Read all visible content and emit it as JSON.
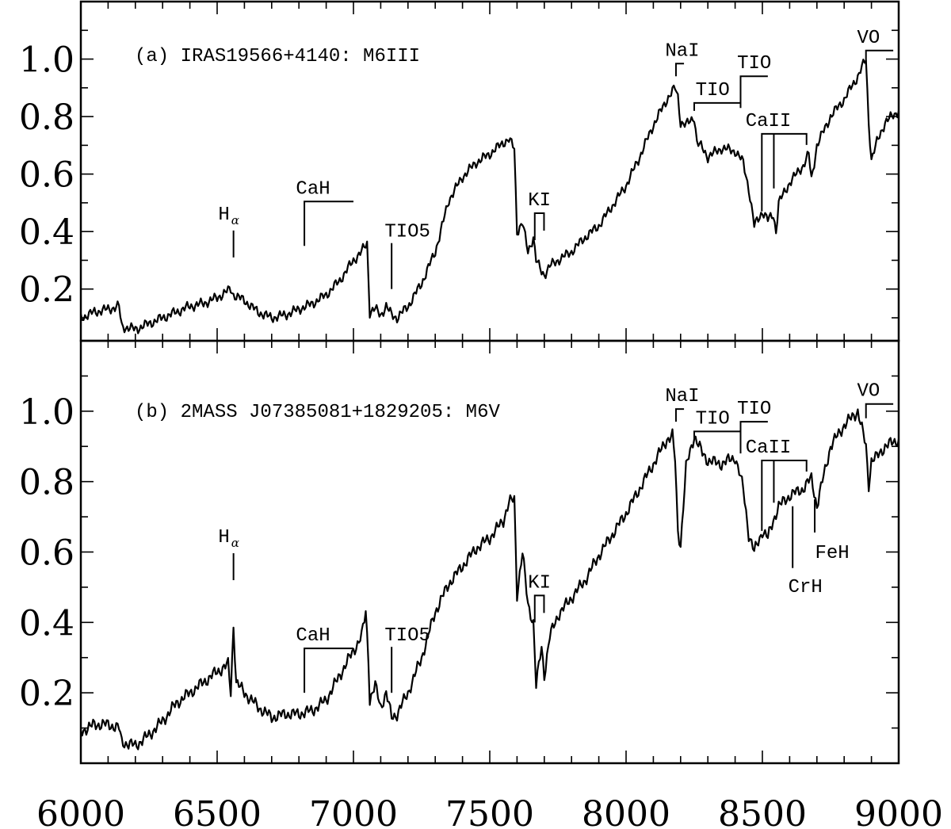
{
  "chart_data": {
    "type": "line",
    "xlim": [
      6000,
      9000
    ],
    "x_ticks": [
      "6000",
      "6500",
      "7000",
      "7500",
      "8000",
      "8500",
      "9000"
    ],
    "grid": false,
    "panels": [
      {
        "id": "a",
        "title": "(a) IRAS19566+4140: M6III",
        "ylim": [
          0.02,
          1.2
        ],
        "y_ticks": [
          "0.2",
          "0.4",
          "0.6",
          "0.8",
          "1.0"
        ],
        "series": [
          {
            "x": [
              6000,
              6050,
              6100,
              6140,
              6150,
              6200,
              6250,
              6300,
              6350,
              6400,
              6450,
              6500,
              6550,
              6560,
              6600,
              6650,
              6700,
              6750,
              6800,
              6850,
              6900,
              6950,
              7000,
              7030,
              7050,
              7060,
              7080,
              7100,
              7120,
              7140,
              7160,
              7200,
              7250,
              7300,
              7320,
              7350,
              7400,
              7450,
              7500,
              7550,
              7570,
              7590,
              7600,
              7620,
              7640,
              7660,
              7670,
              7690,
              7700,
              7720,
              7750,
              7800,
              7850,
              7900,
              7950,
              8000,
              8050,
              8100,
              8150,
              8180,
              8190,
              8200,
              8220,
              8250,
              8260,
              8280,
              8300,
              8350,
              8400,
              8430,
              8450,
              8470,
              8500,
              8520,
              8540,
              8550,
              8560,
              8600,
              8650,
              8670,
              8680,
              8700,
              8750,
              8800,
              8850,
              8870,
              8880,
              8890,
              8900,
              8920,
              8950,
              9000
            ],
            "y": [
              0.1,
              0.12,
              0.13,
              0.14,
              0.07,
              0.06,
              0.08,
              0.1,
              0.12,
              0.14,
              0.15,
              0.17,
              0.2,
              0.18,
              0.16,
              0.12,
              0.1,
              0.11,
              0.13,
              0.15,
              0.18,
              0.23,
              0.3,
              0.33,
              0.36,
              0.12,
              0.13,
              0.11,
              0.14,
              0.11,
              0.1,
              0.14,
              0.22,
              0.33,
              0.4,
              0.51,
              0.59,
              0.64,
              0.67,
              0.71,
              0.72,
              0.69,
              0.4,
              0.43,
              0.33,
              0.38,
              0.3,
              0.26,
              0.25,
              0.28,
              0.3,
              0.33,
              0.38,
              0.42,
              0.49,
              0.56,
              0.66,
              0.77,
              0.86,
              0.9,
              0.87,
              0.78,
              0.77,
              0.8,
              0.71,
              0.69,
              0.66,
              0.69,
              0.68,
              0.64,
              0.55,
              0.42,
              0.47,
              0.44,
              0.46,
              0.4,
              0.5,
              0.57,
              0.63,
              0.67,
              0.58,
              0.7,
              0.8,
              0.86,
              0.94,
              0.98,
              1.0,
              0.78,
              0.65,
              0.71,
              0.78,
              0.82
            ]
          }
        ],
        "annotations": [
          {
            "text": "H",
            "sub": "α",
            "x": 6560
          },
          {
            "text": "CaH",
            "x_start": 6820,
            "x_end": 7000
          },
          {
            "text": "TIO5",
            "x": 7140
          },
          {
            "text": "KI",
            "x_start": 7665,
            "x_end": 7699
          },
          {
            "text": "NaI",
            "x_start": 8183,
            "x_end": 8195
          },
          {
            "text": "TIO",
            "x_start": 8250,
            "x_end": 8420
          },
          {
            "text": "TIO",
            "x_start": 8420,
            "x_end": 8520
          },
          {
            "text": "CaII",
            "x_start": 8498,
            "x_mid": 8542,
            "x_end": 8662
          },
          {
            "text": "VO",
            "x_start": 8880,
            "x_end": 8980
          }
        ]
      },
      {
        "id": "b",
        "title": "(b) 2MASS J07385081+1829205: M6V",
        "ylim": [
          0.0,
          1.2
        ],
        "y_ticks": [
          "0.2",
          "0.4",
          "0.6",
          "0.8",
          "1.0"
        ],
        "series": [
          {
            "x": [
              6000,
              6050,
              6100,
              6140,
              6150,
              6200,
              6250,
              6300,
              6350,
              6400,
              6450,
              6500,
              6540,
              6550,
              6560,
              6570,
              6600,
              6650,
              6700,
              6750,
              6800,
              6850,
              6900,
              6950,
              7000,
              7030,
              7045,
              7055,
              7060,
              7080,
              7100,
              7120,
              7140,
              7160,
              7200,
              7250,
              7300,
              7350,
              7400,
              7450,
              7500,
              7550,
              7570,
              7590,
              7600,
              7620,
              7640,
              7660,
              7670,
              7690,
              7700,
              7720,
              7750,
              7800,
              7850,
              7900,
              7950,
              8000,
              8050,
              8100,
              8150,
              8170,
              8180,
              8190,
              8200,
              8220,
              8250,
              8280,
              8300,
              8350,
              8400,
              8430,
              8450,
              8470,
              8500,
              8520,
              8540,
              8560,
              8600,
              8650,
              8680,
              8700,
              8720,
              8750,
              8800,
              8850,
              8880,
              8890,
              8900,
              8920,
              8950,
              9000
            ],
            "y": [
              0.09,
              0.11,
              0.11,
              0.1,
              0.06,
              0.05,
              0.08,
              0.12,
              0.17,
              0.2,
              0.23,
              0.26,
              0.28,
              0.2,
              0.39,
              0.23,
              0.2,
              0.16,
              0.13,
              0.14,
              0.14,
              0.15,
              0.18,
              0.25,
              0.32,
              0.36,
              0.43,
              0.3,
              0.18,
              0.22,
              0.16,
              0.2,
              0.13,
              0.14,
              0.2,
              0.3,
              0.43,
              0.51,
              0.56,
              0.61,
              0.64,
              0.69,
              0.74,
              0.75,
              0.48,
              0.6,
              0.45,
              0.4,
              0.22,
              0.33,
              0.25,
              0.36,
              0.42,
              0.47,
              0.52,
              0.59,
              0.65,
              0.71,
              0.78,
              0.85,
              0.92,
              0.93,
              0.86,
              0.66,
              0.62,
              0.84,
              0.93,
              0.88,
              0.86,
              0.85,
              0.87,
              0.78,
              0.65,
              0.6,
              0.66,
              0.64,
              0.69,
              0.73,
              0.76,
              0.78,
              0.81,
              0.73,
              0.8,
              0.9,
              0.96,
              1.0,
              0.9,
              0.79,
              0.86,
              0.87,
              0.9,
              0.92
            ]
          }
        ],
        "annotations": [
          {
            "text": "H",
            "sub": "α",
            "x": 6560
          },
          {
            "text": "CaH",
            "x_start": 6820,
            "x_end": 7000
          },
          {
            "text": "TIO5",
            "x": 7140
          },
          {
            "text": "KI",
            "x_start": 7665,
            "x_end": 7699
          },
          {
            "text": "NaI",
            "x_start": 8183,
            "x_end": 8195
          },
          {
            "text": "TIO",
            "x_start": 8250,
            "x_end": 8420
          },
          {
            "text": "TIO",
            "x_start": 8420,
            "x_end": 8520
          },
          {
            "text": "CaII",
            "x_start": 8498,
            "x_mid": 8542,
            "x_end": 8662
          },
          {
            "text": "VO",
            "x_start": 8880,
            "x_end": 8980
          },
          {
            "text": "CrH",
            "x": 8611
          },
          {
            "text": "FeH",
            "x": 8692
          }
        ]
      }
    ]
  }
}
